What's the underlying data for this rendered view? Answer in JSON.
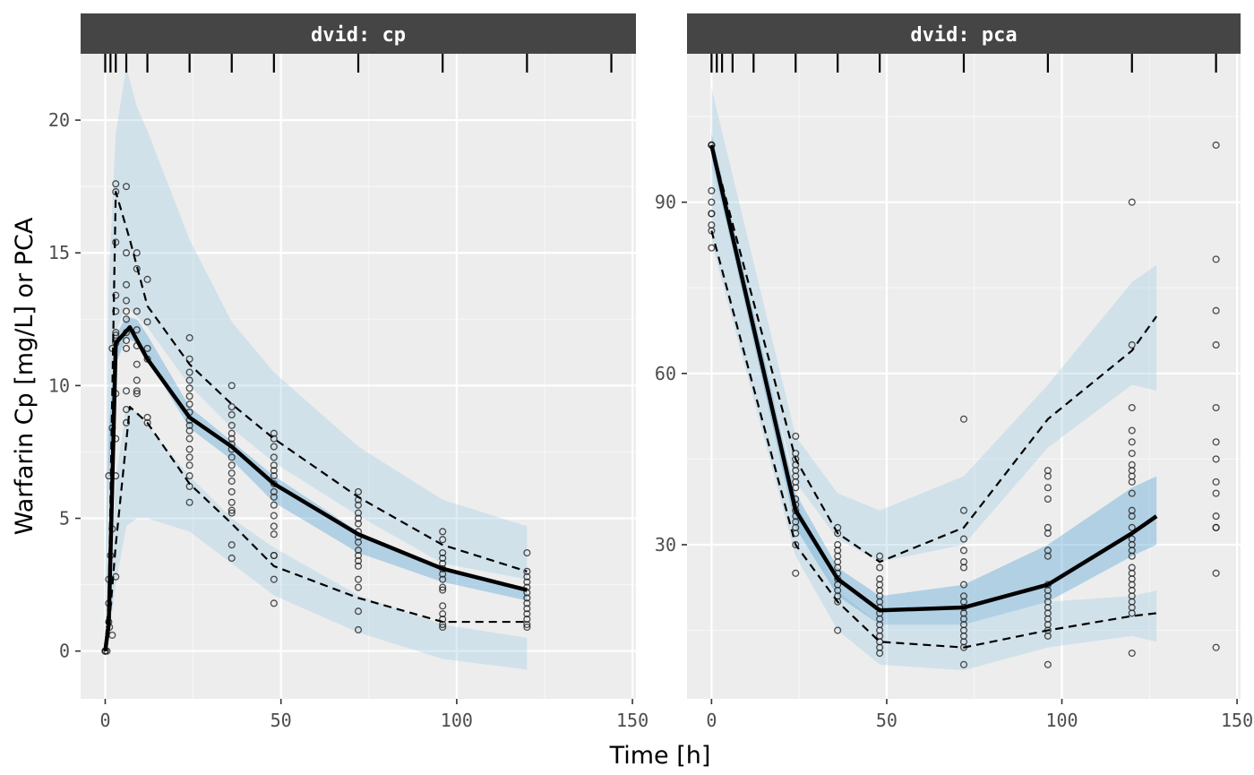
{
  "axis_labels": {
    "x": "Time [h]",
    "y": "Warfarin Cp [mg/L] or PCA"
  },
  "chart_data": [
    {
      "type": "line",
      "panel": "dvid: cp",
      "xlim": [
        -7,
        151
      ],
      "ylim": [
        -1.8,
        22.5
      ],
      "x_ticks": [
        0,
        50,
        100,
        150
      ],
      "y_ticks": [
        0,
        5,
        10,
        15,
        20
      ],
      "grid": true,
      "rug_x": [
        0,
        1.5,
        3,
        6,
        12,
        24,
        36,
        48,
        72,
        96,
        120,
        144
      ],
      "pi_outer": {
        "x": [
          0,
          1,
          3,
          6,
          9,
          12,
          24,
          36,
          48,
          72,
          96,
          120
        ],
        "lo_low": [
          -0.3,
          0.5,
          2.5,
          4.7,
          5,
          5,
          4.5,
          3.3,
          2.1,
          0.7,
          -0.3,
          -0.7
        ],
        "lo_high": [
          0.3,
          2.2,
          6.5,
          9.2,
          9,
          8.5,
          6.6,
          5,
          3.9,
          2.1,
          1,
          0.5
        ],
        "mid_low": [
          -0.1,
          6.5,
          10.8,
          11.8,
          11.6,
          11,
          8.4,
          7.2,
          5.6,
          3.7,
          2.6,
          1.9
        ],
        "mid_high": [
          0.1,
          8.3,
          11.9,
          12.6,
          12.5,
          11.9,
          9.2,
          7.9,
          6.6,
          4.5,
          3,
          2.4
        ],
        "hi_low": [
          0.5,
          6,
          12,
          13,
          12.6,
          12.2,
          10,
          8.4,
          7.1,
          5.1,
          3.3,
          2.7
        ],
        "hi_high": [
          2.8,
          14,
          19.5,
          22,
          20.5,
          19.6,
          15.5,
          12.4,
          10.5,
          7.7,
          5.7,
          4.7
        ]
      },
      "obs_median": {
        "x": [
          0,
          1,
          3,
          7,
          12,
          24,
          36,
          48,
          72,
          96,
          120
        ],
        "y": [
          0,
          1,
          11.6,
          12.2,
          11,
          8.8,
          7.7,
          6.3,
          4.4,
          3.1,
          2.3
        ]
      },
      "obs_p05": {
        "x": [
          0,
          1,
          3,
          7,
          12,
          24,
          36,
          48,
          72,
          96,
          120
        ],
        "y": [
          0,
          0.8,
          4,
          9.2,
          8.6,
          6.3,
          4.8,
          3.2,
          2,
          1.1,
          1.1
        ]
      },
      "obs_p95": {
        "x": [
          0,
          1,
          3,
          7,
          12,
          24,
          36,
          48,
          72,
          96,
          120
        ],
        "y": [
          0,
          2,
          17.3,
          15.5,
          13,
          10.8,
          9.3,
          8,
          5.8,
          4,
          3
        ]
      },
      "points": [
        [
          0,
          0
        ],
        [
          0,
          0
        ],
        [
          0,
          0
        ],
        [
          0,
          0
        ],
        [
          0.5,
          0
        ],
        [
          1,
          1.1
        ],
        [
          1,
          1.8
        ],
        [
          1,
          2.7
        ],
        [
          1,
          6.6
        ],
        [
          1.2,
          0.9
        ],
        [
          1.5,
          3.6
        ],
        [
          2,
          0.6
        ],
        [
          2,
          4.6
        ],
        [
          2,
          8.4
        ],
        [
          2,
          11.4
        ],
        [
          3,
          17.6
        ],
        [
          3,
          11.6
        ],
        [
          3,
          9.7
        ],
        [
          3,
          11.9
        ],
        [
          3,
          8
        ],
        [
          3,
          6.6
        ],
        [
          3,
          2.8
        ],
        [
          3,
          12.8
        ],
        [
          3,
          13.4
        ],
        [
          3,
          15.4
        ],
        [
          3,
          17.3
        ],
        [
          3,
          12
        ],
        [
          6,
          17.5
        ],
        [
          6,
          15
        ],
        [
          6,
          13.8
        ],
        [
          6,
          13.2
        ],
        [
          6,
          12.8
        ],
        [
          6,
          12.5
        ],
        [
          6,
          12
        ],
        [
          6,
          11.7
        ],
        [
          6,
          11.4
        ],
        [
          6,
          9.8
        ],
        [
          6,
          9.1
        ],
        [
          6,
          8.6
        ],
        [
          9,
          15
        ],
        [
          9,
          14.4
        ],
        [
          9,
          12.8
        ],
        [
          9,
          12.1
        ],
        [
          9,
          11.5
        ],
        [
          9,
          10.8
        ],
        [
          9,
          10.2
        ],
        [
          9,
          9.7
        ],
        [
          9,
          9.8
        ],
        [
          12,
          14
        ],
        [
          12,
          12.4
        ],
        [
          12,
          11.4
        ],
        [
          12,
          11
        ],
        [
          12,
          8.8
        ],
        [
          12,
          8.6
        ],
        [
          24,
          11.8
        ],
        [
          24,
          11
        ],
        [
          24,
          10.5
        ],
        [
          24,
          10.2
        ],
        [
          24,
          9.9
        ],
        [
          24,
          9.6
        ],
        [
          24,
          9.3
        ],
        [
          24,
          9
        ],
        [
          24,
          8.7
        ],
        [
          24,
          8.5
        ],
        [
          24,
          8.3
        ],
        [
          24,
          8
        ],
        [
          24,
          7.6
        ],
        [
          24,
          7.3
        ],
        [
          24,
          7
        ],
        [
          24,
          6.6
        ],
        [
          24,
          6.2
        ],
        [
          24,
          5.6
        ],
        [
          36,
          10
        ],
        [
          36,
          9.2
        ],
        [
          36,
          8.9
        ],
        [
          36,
          8.5
        ],
        [
          36,
          8.2
        ],
        [
          36,
          8
        ],
        [
          36,
          7.8
        ],
        [
          36,
          7.6
        ],
        [
          36,
          7.3
        ],
        [
          36,
          7
        ],
        [
          36,
          6.7
        ],
        [
          36,
          6.4
        ],
        [
          36,
          6
        ],
        [
          36,
          5.6
        ],
        [
          36,
          5.3
        ],
        [
          36,
          5.2
        ],
        [
          36,
          4
        ],
        [
          36,
          3.5
        ],
        [
          48,
          8.2
        ],
        [
          48,
          8
        ],
        [
          48,
          7.7
        ],
        [
          48,
          7.3
        ],
        [
          48,
          7
        ],
        [
          48,
          6.8
        ],
        [
          48,
          6.6
        ],
        [
          48,
          6.3
        ],
        [
          48,
          6
        ],
        [
          48,
          5.8
        ],
        [
          48,
          5.5
        ],
        [
          48,
          5.1
        ],
        [
          48,
          4.7
        ],
        [
          48,
          4.4
        ],
        [
          48,
          3.6
        ],
        [
          48,
          3.6
        ],
        [
          48,
          2.7
        ],
        [
          48,
          1.8
        ],
        [
          72,
          6
        ],
        [
          72,
          5.7
        ],
        [
          72,
          5.5
        ],
        [
          72,
          5.2
        ],
        [
          72,
          5
        ],
        [
          72,
          4.8
        ],
        [
          72,
          4.5
        ],
        [
          72,
          4.3
        ],
        [
          72,
          4.1
        ],
        [
          72,
          3.8
        ],
        [
          72,
          3.6
        ],
        [
          72,
          3.4
        ],
        [
          72,
          3.2
        ],
        [
          72,
          2.7
        ],
        [
          72,
          2.4
        ],
        [
          72,
          1.5
        ],
        [
          72,
          0.8
        ],
        [
          96,
          4.5
        ],
        [
          96,
          4.2
        ],
        [
          96,
          3.7
        ],
        [
          96,
          3.5
        ],
        [
          96,
          3.3
        ],
        [
          96,
          3.1
        ],
        [
          96,
          2.9
        ],
        [
          96,
          2.7
        ],
        [
          96,
          2.4
        ],
        [
          96,
          2.3
        ],
        [
          96,
          1.7
        ],
        [
          96,
          1.4
        ],
        [
          96,
          1.2
        ],
        [
          96,
          1
        ],
        [
          96,
          0.9
        ],
        [
          120,
          3.7
        ],
        [
          120,
          3
        ],
        [
          120,
          2.8
        ],
        [
          120,
          2.6
        ],
        [
          120,
          2.4
        ],
        [
          120,
          2.2
        ],
        [
          120,
          2
        ],
        [
          120,
          1.8
        ],
        [
          120,
          1.6
        ],
        [
          120,
          1.4
        ],
        [
          120,
          1.2
        ],
        [
          120,
          1
        ],
        [
          120,
          0.9
        ]
      ]
    },
    {
      "type": "line",
      "panel": "dvid: pca",
      "xlim": [
        -7,
        151
      ],
      "ylim": [
        3,
        116
      ],
      "x_ticks": [
        0,
        50,
        100,
        150
      ],
      "y_ticks": [
        30,
        60,
        90
      ],
      "grid": true,
      "rug_x": [
        0,
        1.5,
        3,
        6,
        12,
        24,
        36,
        48,
        72,
        96,
        120,
        144
      ],
      "pi_outer": {
        "x": [
          0,
          24,
          36,
          48,
          72,
          96,
          120,
          127
        ],
        "lo_low": [
          83,
          28,
          15,
          9,
          8,
          12,
          14,
          13
        ],
        "lo_high": [
          100,
          38,
          22,
          16,
          16,
          20,
          21,
          22
        ],
        "mid_low": [
          98,
          33,
          21,
          16,
          16,
          20,
          28,
          30
        ],
        "mid_high": [
          102,
          39,
          26,
          21,
          23,
          30,
          40,
          42
        ],
        "hi_low": [
          96,
          41,
          31,
          27,
          30,
          47,
          58,
          57
        ],
        "hi_high": [
          110,
          49,
          39,
          36,
          42,
          58,
          76,
          79
        ]
      },
      "obs_median": {
        "x": [
          0,
          24,
          36,
          48,
          72,
          96,
          120,
          127
        ],
        "y": [
          100,
          36,
          24,
          18.5,
          19,
          23,
          32,
          35
        ]
      },
      "obs_p05": {
        "x": [
          0,
          24,
          36,
          48,
          72,
          96,
          120,
          127
        ],
        "y": [
          85,
          30,
          20,
          13,
          12,
          15,
          17.5,
          18
        ]
      },
      "obs_p95": {
        "x": [
          0,
          24,
          36,
          48,
          72,
          96,
          120,
          127
        ],
        "y": [
          100,
          45,
          32,
          27,
          33,
          52,
          64,
          70
        ]
      },
      "points": [
        [
          0,
          100
        ],
        [
          0,
          100
        ],
        [
          0,
          100
        ],
        [
          0,
          100
        ],
        [
          0,
          92
        ],
        [
          0,
          90
        ],
        [
          0,
          88
        ],
        [
          0,
          88
        ],
        [
          0,
          86
        ],
        [
          0,
          85
        ],
        [
          0,
          82
        ],
        [
          24,
          49
        ],
        [
          24,
          46
        ],
        [
          24,
          45
        ],
        [
          24,
          44
        ],
        [
          24,
          43
        ],
        [
          24,
          42
        ],
        [
          24,
          41
        ],
        [
          24,
          40
        ],
        [
          24,
          38
        ],
        [
          24,
          37
        ],
        [
          24,
          36
        ],
        [
          24,
          35
        ],
        [
          24,
          34
        ],
        [
          24,
          33
        ],
        [
          24,
          32
        ],
        [
          24,
          30
        ],
        [
          24,
          25
        ],
        [
          36,
          33
        ],
        [
          36,
          32
        ],
        [
          36,
          30
        ],
        [
          36,
          29
        ],
        [
          36,
          28
        ],
        [
          36,
          27
        ],
        [
          36,
          26
        ],
        [
          36,
          25
        ],
        [
          36,
          24
        ],
        [
          36,
          23
        ],
        [
          36,
          22
        ],
        [
          36,
          21
        ],
        [
          36,
          20
        ],
        [
          36,
          15
        ],
        [
          48,
          28
        ],
        [
          48,
          26
        ],
        [
          48,
          24
        ],
        [
          48,
          23
        ],
        [
          48,
          22
        ],
        [
          48,
          21
        ],
        [
          48,
          20
        ],
        [
          48,
          19
        ],
        [
          48,
          18
        ],
        [
          48,
          17
        ],
        [
          48,
          16
        ],
        [
          48,
          15
        ],
        [
          48,
          14
        ],
        [
          48,
          13
        ],
        [
          48,
          12
        ],
        [
          48,
          11
        ],
        [
          72,
          52
        ],
        [
          72,
          36
        ],
        [
          72,
          31
        ],
        [
          72,
          29
        ],
        [
          72,
          27
        ],
        [
          72,
          26
        ],
        [
          72,
          23
        ],
        [
          72,
          21
        ],
        [
          72,
          20
        ],
        [
          72,
          19
        ],
        [
          72,
          18
        ],
        [
          72,
          17
        ],
        [
          72,
          16
        ],
        [
          72,
          15
        ],
        [
          72,
          14
        ],
        [
          72,
          13
        ],
        [
          72,
          12
        ],
        [
          72,
          9
        ],
        [
          96,
          43
        ],
        [
          96,
          42
        ],
        [
          96,
          40
        ],
        [
          96,
          38
        ],
        [
          96,
          33
        ],
        [
          96,
          32
        ],
        [
          96,
          29
        ],
        [
          96,
          28
        ],
        [
          96,
          23
        ],
        [
          96,
          22
        ],
        [
          96,
          21
        ],
        [
          96,
          20
        ],
        [
          96,
          19
        ],
        [
          96,
          18
        ],
        [
          96,
          17
        ],
        [
          96,
          16
        ],
        [
          96,
          15
        ],
        [
          96,
          14
        ],
        [
          96,
          9
        ],
        [
          120,
          90
        ],
        [
          120,
          65
        ],
        [
          120,
          54
        ],
        [
          120,
          50
        ],
        [
          120,
          48
        ],
        [
          120,
          46
        ],
        [
          120,
          44
        ],
        [
          120,
          43
        ],
        [
          120,
          42
        ],
        [
          120,
          41
        ],
        [
          120,
          39
        ],
        [
          120,
          36
        ],
        [
          120,
          35
        ],
        [
          120,
          33
        ],
        [
          120,
          31
        ],
        [
          120,
          30
        ],
        [
          120,
          29
        ],
        [
          120,
          28
        ],
        [
          120,
          26
        ],
        [
          120,
          25
        ],
        [
          120,
          24
        ],
        [
          120,
          23
        ],
        [
          120,
          22
        ],
        [
          120,
          21
        ],
        [
          120,
          20
        ],
        [
          120,
          19
        ],
        [
          120,
          18
        ],
        [
          120,
          11
        ],
        [
          144,
          100
        ],
        [
          144,
          80
        ],
        [
          144,
          71
        ],
        [
          144,
          65
        ],
        [
          144,
          54
        ],
        [
          144,
          48
        ],
        [
          144,
          45
        ],
        [
          144,
          41
        ],
        [
          144,
          39
        ],
        [
          144,
          35
        ],
        [
          144,
          33
        ],
        [
          144,
          33
        ],
        [
          144,
          25
        ],
        [
          144,
          12
        ]
      ]
    }
  ]
}
